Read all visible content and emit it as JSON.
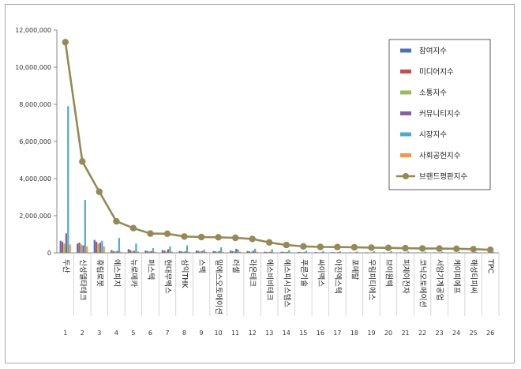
{
  "chart_data": {
    "type": "bar",
    "title": "",
    "xlabel": "",
    "ylabel": "",
    "ylim": [
      0,
      12000000
    ],
    "yticks": [
      "0",
      "2,000,000",
      "4,000,000",
      "6,000,000",
      "8,000,000",
      "10,000,000",
      "12,000,000"
    ],
    "grid": false,
    "legend_position": "top-right",
    "index_labels": [
      "1",
      "2",
      "3",
      "4",
      "5",
      "6",
      "7",
      "8",
      "9",
      "10",
      "11",
      "12",
      "13",
      "14",
      "15",
      "16",
      "17",
      "18",
      "19",
      "20",
      "21",
      "22",
      "23",
      "24",
      "25",
      "26"
    ],
    "categories": [
      "두산",
      "신성델타테크",
      "휴림로봇",
      "에스피지",
      "뉴로메카",
      "퍼스텍",
      "현대무벡스",
      "삼익THK",
      "스맥",
      "알에스오토메이션",
      "러셀",
      "라온테크",
      "에스비비테크",
      "에스피시스템스",
      "푸른기술",
      "싸이맥스",
      "아진엑스텍",
      "포메탈",
      "우림피티에스",
      "브이원텍",
      "피제이전자",
      "코닉오토메이션",
      "서암기계공업",
      "케이피에프",
      "해성티피씨",
      "TPC"
    ],
    "series": [
      {
        "name": "참여지수",
        "color": "#4472c4",
        "kind": "bar",
        "values": [
          650000,
          500000,
          700000,
          150000,
          200000,
          120000,
          150000,
          100000,
          120000,
          100000,
          120000,
          100000,
          60000,
          60000,
          50000,
          40000,
          40000,
          30000,
          30000,
          30000,
          30000,
          25000,
          25000,
          20000,
          20000,
          20000
        ]
      },
      {
        "name": "미디어지수",
        "color": "#c0504d",
        "kind": "bar",
        "values": [
          600000,
          550000,
          600000,
          100000,
          150000,
          100000,
          120000,
          80000,
          100000,
          80000,
          100000,
          80000,
          50000,
          50000,
          40000,
          30000,
          30000,
          25000,
          25000,
          25000,
          20000,
          20000,
          20000,
          15000,
          15000,
          15000
        ]
      },
      {
        "name": "소통지수",
        "color": "#9bbb59",
        "kind": "bar",
        "values": [
          500000,
          450000,
          500000,
          80000,
          100000,
          80000,
          90000,
          60000,
          80000,
          60000,
          80000,
          60000,
          40000,
          40000,
          30000,
          25000,
          25000,
          20000,
          20000,
          20000,
          15000,
          15000,
          15000,
          12000,
          12000,
          12000
        ]
      },
      {
        "name": "커뮤니티지수",
        "color": "#8064a2",
        "kind": "bar",
        "values": [
          1050000,
          400000,
          550000,
          100000,
          120000,
          100000,
          200000,
          80000,
          100000,
          100000,
          220000,
          120000,
          60000,
          50000,
          40000,
          30000,
          40000,
          30000,
          30000,
          30000,
          25000,
          25000,
          20000,
          20000,
          20000,
          20000
        ]
      },
      {
        "name": "시장지수",
        "color": "#4bacc6",
        "kind": "bar",
        "values": [
          7900000,
          2850000,
          650000,
          800000,
          500000,
          250000,
          350000,
          400000,
          180000,
          300000,
          180000,
          220000,
          200000,
          150000,
          120000,
          100000,
          80000,
          70000,
          80000,
          90000,
          70000,
          60000,
          60000,
          60000,
          50000,
          50000
        ]
      },
      {
        "name": "사회공헌지수",
        "color": "#f79646",
        "kind": "bar",
        "values": [
          450000,
          350000,
          350000,
          60000,
          80000,
          60000,
          70000,
          50000,
          60000,
          50000,
          60000,
          50000,
          30000,
          30000,
          25000,
          20000,
          20000,
          15000,
          15000,
          15000,
          12000,
          12000,
          12000,
          10000,
          10000,
          10000
        ]
      },
      {
        "name": "브랜드평판지수",
        "color": "#948a54",
        "kind": "line",
        "values": [
          11350000,
          4920000,
          3290000,
          1700000,
          1330000,
          1040000,
          1030000,
          880000,
          850000,
          840000,
          810000,
          750000,
          560000,
          420000,
          350000,
          320000,
          310000,
          300000,
          280000,
          270000,
          250000,
          240000,
          230000,
          220000,
          200000,
          160000
        ]
      }
    ]
  }
}
